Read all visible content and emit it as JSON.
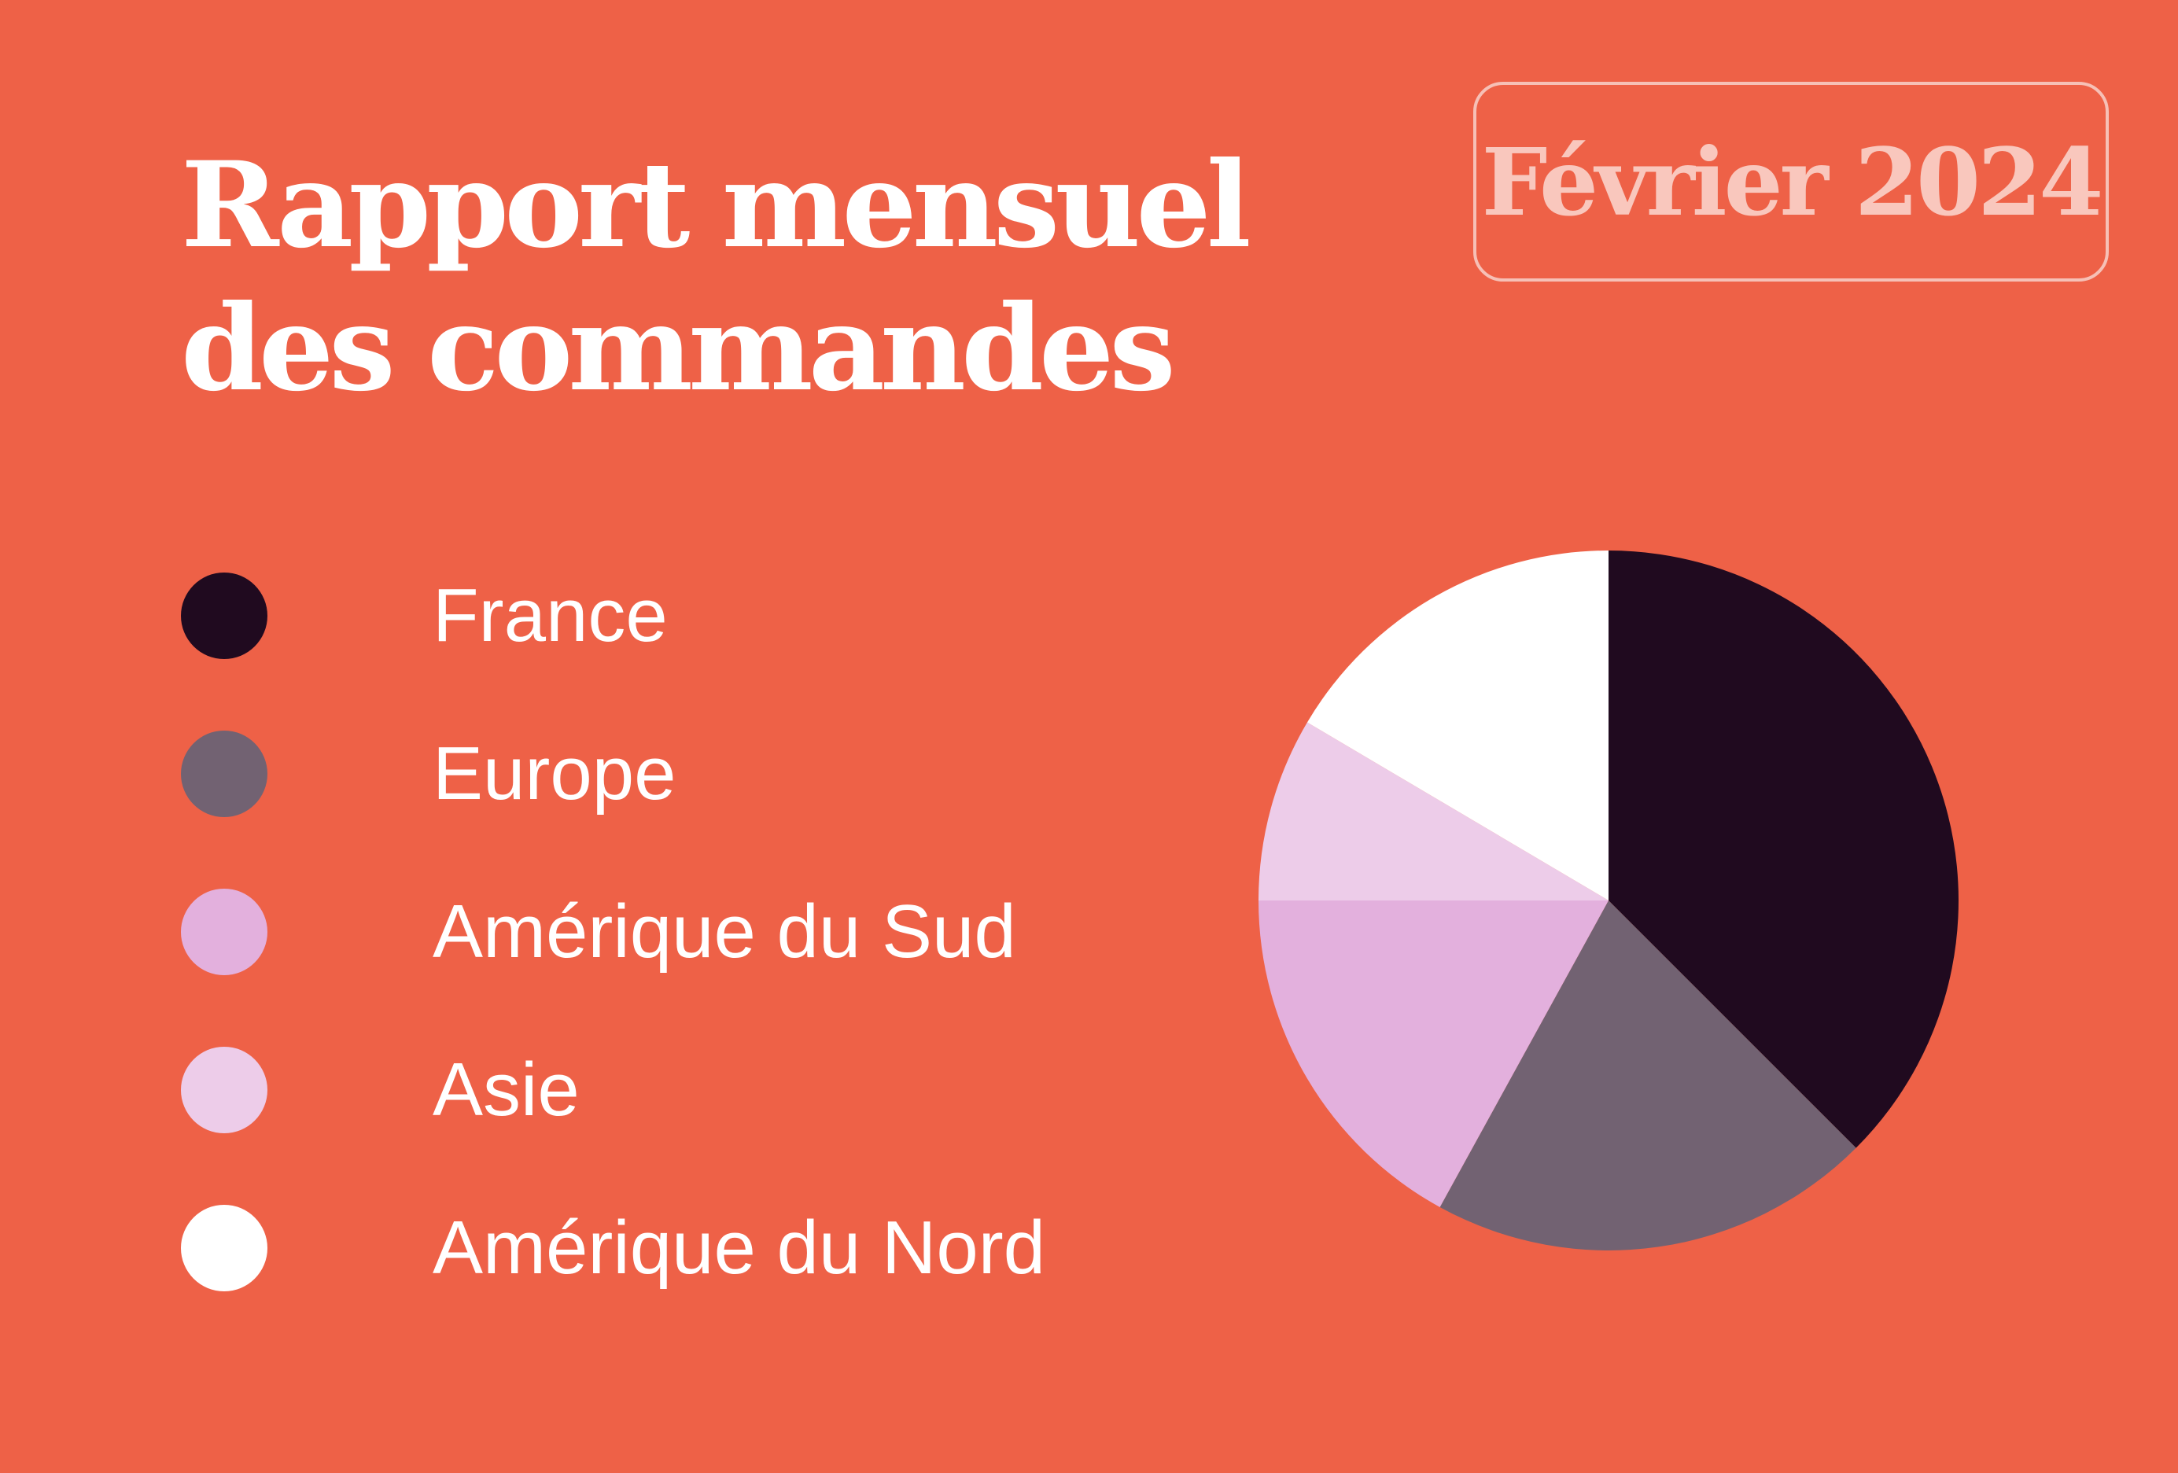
{
  "header": {
    "title_line1": "Rapport mensuel",
    "title_line2": "des commandes",
    "period": "Février 2024"
  },
  "chart_data": {
    "type": "pie",
    "legend_position": "left",
    "categories": [
      "France",
      "Europe",
      "Amérique du Sud",
      "Asie",
      "Amérique du Nord"
    ],
    "values": [
      37.5,
      20.5,
      17,
      8.5,
      16.5
    ],
    "colors": [
      "#200a1f",
      "#726272",
      "#e3b0dd",
      "#edcce9",
      "#ffffff"
    ],
    "start": "top",
    "direction": "clockwise"
  }
}
